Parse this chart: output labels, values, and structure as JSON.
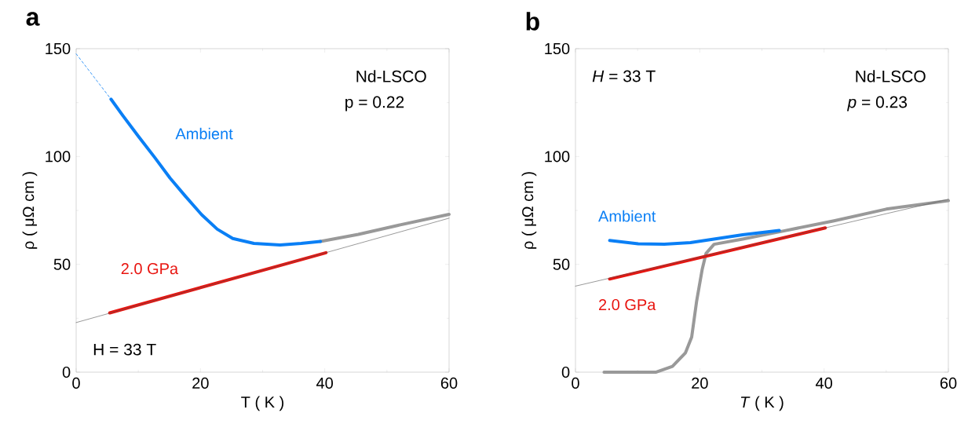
{
  "chart_data": [
    {
      "type": "line",
      "title": "a",
      "xlabel": "T ( K )",
      "ylabel": "ρ ( μΩ cm )",
      "xlim": [
        0,
        60
      ],
      "ylim": [
        0,
        150
      ],
      "xticks": [
        0,
        20,
        40,
        60
      ],
      "yticks": [
        0,
        50,
        100,
        150
      ],
      "annotations": [
        "Nd-LSCO",
        "p = 0.22",
        "H = 33 T"
      ],
      "series": [
        {
          "color": "#999999",
          "x": [
            39.3,
            45.4,
            51.8,
            60
          ],
          "values": [
            60.6,
            63.9,
            68.1,
            73.2
          ]
        },
        {
          "name": "Ambient",
          "color": "#0a7ff5",
          "x": [
            5.6,
            7.5,
            10.0,
            12.6,
            15.1,
            17.6,
            20.2,
            22.7,
            25.2,
            28.6,
            32.8,
            36.2,
            39.3
          ],
          "values": [
            126.6,
            119,
            109.4,
            99.7,
            90,
            81.5,
            73,
            66.3,
            62,
            59.7,
            59,
            59.7,
            60.6
          ]
        },
        {
          "color": "#0a7ff5",
          "line_style": "dashed",
          "x": [
            0,
            5.6
          ],
          "values": [
            147.6,
            126.6
          ]
        },
        {
          "name": "2.0 GPa",
          "color": "#e8140f",
          "x": [
            5.4,
            40.2
          ],
          "values": [
            27.5,
            55.4
          ]
        },
        {
          "color": "#555555",
          "x": [
            0,
            60
          ],
          "values": [
            23,
            71.4
          ]
        }
      ]
    },
    {
      "type": "line",
      "title": "b",
      "xlabel": "*T* ( K )",
      "ylabel": "ρ ( μΩ cm )",
      "xlim": [
        0,
        60
      ],
      "ylim": [
        0,
        150
      ],
      "xticks": [
        0,
        20,
        40,
        60
      ],
      "yticks": [
        0,
        50,
        100,
        150
      ],
      "annotations": [
        "*H* = 33 T",
        "Nd-LSCO",
        "*p* = 0.23"
      ],
      "series": [
        {
          "color": "#999999",
          "x": [
            4.6,
            13,
            15.6,
            17.7,
            18.7,
            19.5,
            20.4,
            21,
            22.3,
            26.9,
            33.2,
            41.6,
            50,
            60
          ],
          "values": [
            0,
            0,
            2.7,
            9,
            16.3,
            33,
            47.8,
            55,
            59.3,
            61.7,
            65.3,
            70.2,
            75.6,
            79.5
          ]
        },
        {
          "name": "Ambient",
          "color": "#0a7ff5",
          "x": [
            5.5,
            10.1,
            14.3,
            18.5,
            22.7,
            26.9,
            32.8
          ],
          "values": [
            61.1,
            59.5,
            59.3,
            60.1,
            61.9,
            63.7,
            65.7
          ]
        },
        {
          "name": "2.0 GPa",
          "color": "#e8140f",
          "x": [
            5.5,
            40.2
          ],
          "values": [
            43.2,
            66.9
          ]
        },
        {
          "color": "#555555",
          "x": [
            0,
            60
          ],
          "values": [
            39.9,
            80.2
          ]
        }
      ]
    }
  ]
}
